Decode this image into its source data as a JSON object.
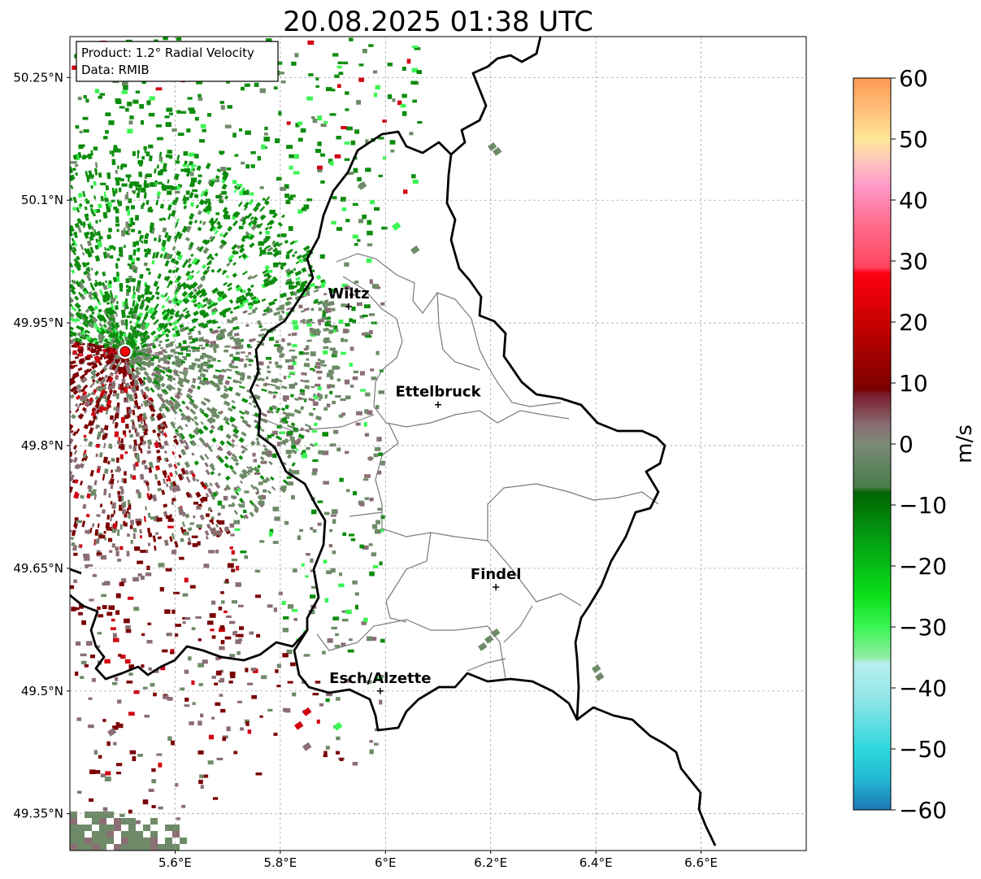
{
  "title": "20.08.2025 01:38 UTC",
  "info_box": {
    "product": "Product: 1.2° Radial Velocity",
    "data": "Data: RMIB"
  },
  "map": {
    "lat_ticks": [
      {
        "value": 50.25,
        "label": "50.25°N"
      },
      {
        "value": 50.1,
        "label": "50.1°N"
      },
      {
        "value": 49.95,
        "label": "49.95°N"
      },
      {
        "value": 49.8,
        "label": "49.8°N"
      },
      {
        "value": 49.65,
        "label": "49.65°N"
      },
      {
        "value": 49.5,
        "label": "49.5°N"
      },
      {
        "value": 49.35,
        "label": "49.35°N"
      }
    ],
    "lon_ticks": [
      {
        "value": 5.6,
        "label": "5.6°E"
      },
      {
        "value": 5.8,
        "label": "5.8°E"
      },
      {
        "value": 6.0,
        "label": "6°E"
      },
      {
        "value": 6.2,
        "label": "6.2°E"
      },
      {
        "value": 6.4,
        "label": "6.4°E"
      },
      {
        "value": 6.6,
        "label": "6.6°E"
      }
    ],
    "cities": [
      {
        "name": "Wiltz",
        "lon": 5.93,
        "lat": 49.97
      },
      {
        "name": "Ettelbruck",
        "lon": 6.1,
        "lat": 49.85
      },
      {
        "name": "Findel",
        "lon": 6.21,
        "lat": 49.627
      },
      {
        "name": "Esch/Alzette",
        "lon": 5.99,
        "lat": 49.5
      }
    ],
    "radar_site": {
      "lon": 5.505,
      "lat": 49.915,
      "color": "#ff0000"
    }
  },
  "colorbar": {
    "label": "m/s",
    "min": -60,
    "max": 60,
    "ticks": [
      {
        "value": 60,
        "label": "60"
      },
      {
        "value": 50,
        "label": "50"
      },
      {
        "value": 40,
        "label": "40"
      },
      {
        "value": 30,
        "label": "30"
      },
      {
        "value": 20,
        "label": "20"
      },
      {
        "value": 10,
        "label": "10"
      },
      {
        "value": 0,
        "label": "0"
      },
      {
        "value": -10,
        "label": "−10"
      },
      {
        "value": -20,
        "label": "−20"
      },
      {
        "value": -30,
        "label": "−30"
      },
      {
        "value": -40,
        "label": "−40"
      },
      {
        "value": -50,
        "label": "−50"
      },
      {
        "value": -60,
        "label": "−60"
      }
    ],
    "stops": [
      {
        "value": -60,
        "color": "#1f77b4"
      },
      {
        "value": -55,
        "color": "#22b8d4"
      },
      {
        "value": -50,
        "color": "#2fd8dc"
      },
      {
        "value": -42,
        "color": "#8fe6e8"
      },
      {
        "value": -36,
        "color": "#b7eeee"
      },
      {
        "value": -35,
        "color": "#90eea5"
      },
      {
        "value": -30,
        "color": "#3cf554"
      },
      {
        "value": -25,
        "color": "#0ae01a"
      },
      {
        "value": -15,
        "color": "#039a12"
      },
      {
        "value": -8,
        "color": "#006400"
      },
      {
        "value": -7,
        "color": "#4b7d4b"
      },
      {
        "value": 0,
        "color": "#7a8a76"
      },
      {
        "value": 3,
        "color": "#8a6e74"
      },
      {
        "value": 8,
        "color": "#7a1e2e"
      },
      {
        "value": 9,
        "color": "#7a0000"
      },
      {
        "value": 20,
        "color": "#c80000"
      },
      {
        "value": 28,
        "color": "#ff0010"
      },
      {
        "value": 29,
        "color": "#ff4660"
      },
      {
        "value": 36,
        "color": "#ff6c8c"
      },
      {
        "value": 42,
        "color": "#ff96c8"
      },
      {
        "value": 46,
        "color": "#ffc0c0"
      },
      {
        "value": 50,
        "color": "#ffe89a"
      },
      {
        "value": 55,
        "color": "#ffbe7a"
      },
      {
        "value": 60,
        "color": "#ff9a55"
      }
    ]
  },
  "colors": {
    "inbound_strong": "#0c8c0c",
    "inbound_light": "#3cf554",
    "near_zero_green": "#6e8a68",
    "near_zero_pink": "#8a6e74",
    "outbound": "#7a0000",
    "outbound_strong": "#d00010"
  }
}
